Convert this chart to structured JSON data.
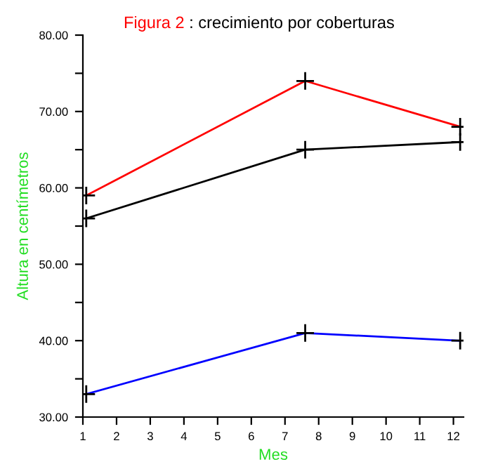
{
  "chart_data": {
    "type": "line",
    "title": "Figura 2",
    "subtitle": ": crecimiento por coberturas",
    "xlabel": "Mes",
    "ylabel": "Altura en centímetros",
    "x": [
      1.1,
      7.6,
      12.2
    ],
    "series": [
      {
        "color": "#ff0000",
        "values": [
          59,
          74,
          68
        ]
      },
      {
        "color": "#000000",
        "values": [
          56,
          65,
          66
        ]
      },
      {
        "color": "#0000ff",
        "values": [
          33,
          41,
          40
        ]
      }
    ],
    "marker": "cross",
    "grid": false,
    "xlim": [
      1,
      12.3
    ],
    "xticks": [
      1,
      2,
      3,
      4,
      5,
      6,
      7,
      8,
      9,
      10,
      11,
      12
    ],
    "ylim": [
      30,
      80
    ],
    "yticks": [
      {
        "value": 30,
        "label": "30.00"
      },
      {
        "value": 35,
        "label": null
      },
      {
        "value": 40,
        "label": "40.00"
      },
      {
        "value": 45,
        "label": null
      },
      {
        "value": 50,
        "label": "50.00"
      },
      {
        "value": 55,
        "label": null
      },
      {
        "value": 60,
        "label": "60.00"
      },
      {
        "value": 65,
        "label": null
      },
      {
        "value": 70,
        "label": "70.00"
      },
      {
        "value": 75,
        "label": null
      },
      {
        "value": 80,
        "label": "80.00"
      }
    ]
  }
}
